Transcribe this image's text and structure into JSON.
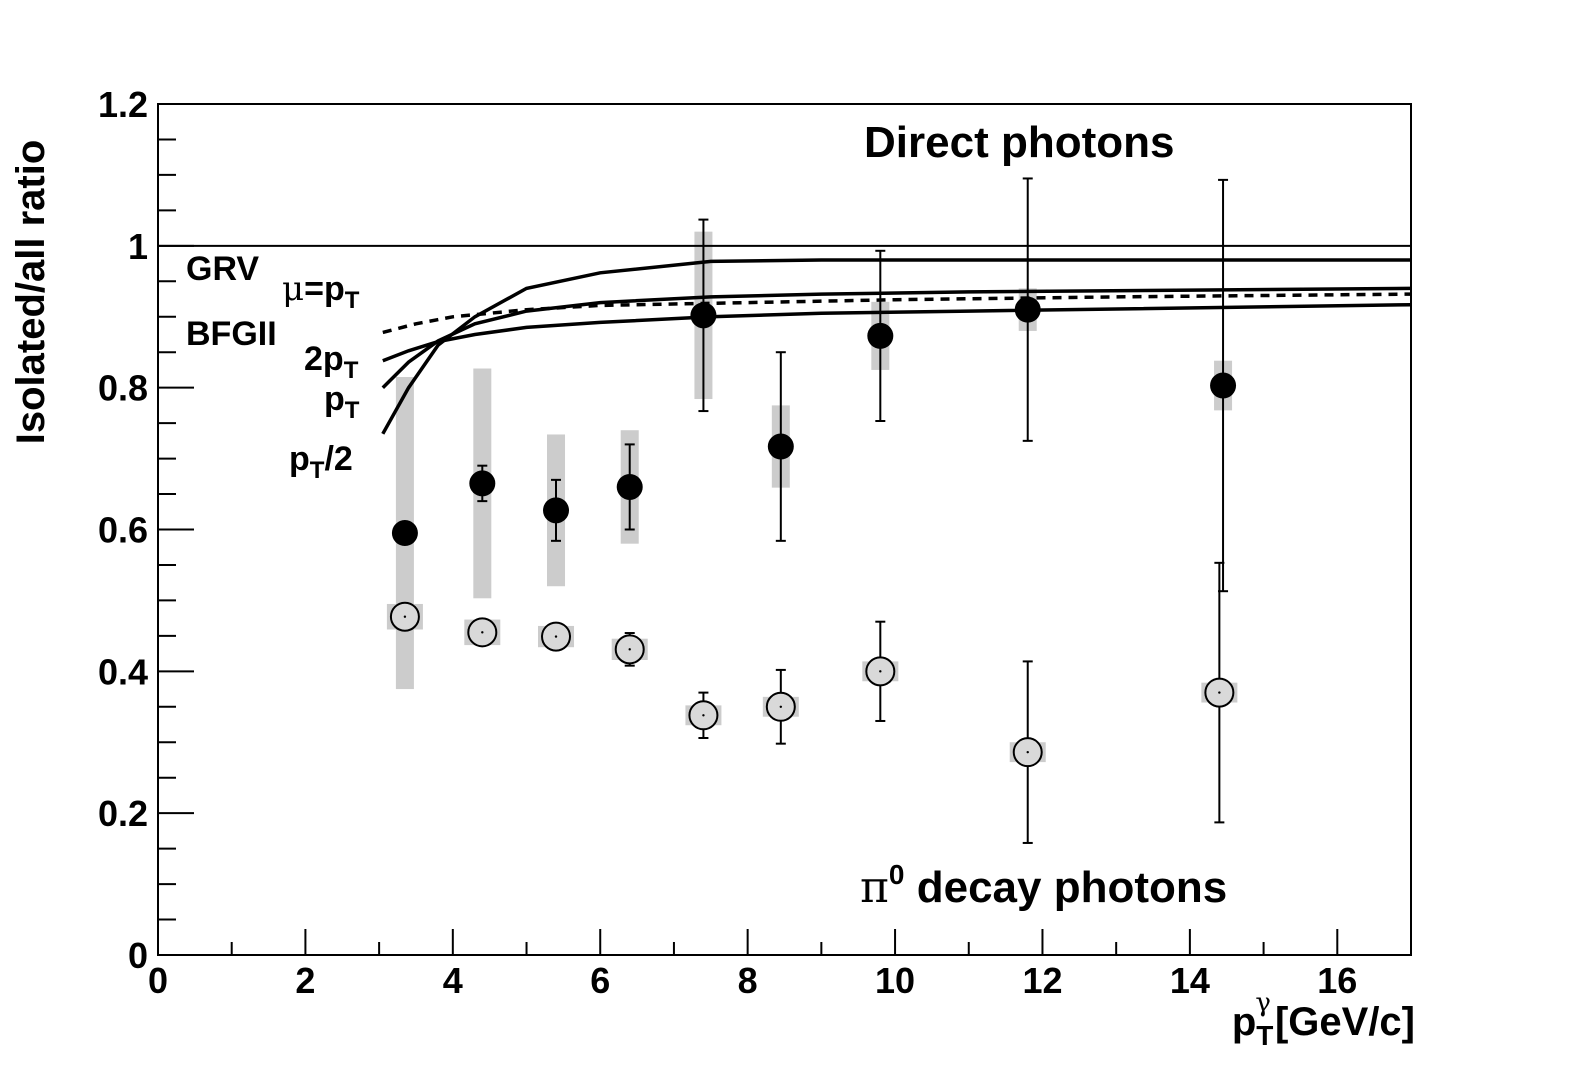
{
  "chart_data": {
    "type": "scatter",
    "title": "",
    "ylabel": "Isolated/all ratio",
    "xlabel": {
      "main": "p",
      "sub": "T",
      "sup": "γ",
      "unit": "[GeV/c]"
    },
    "xlim": [
      0,
      17
    ],
    "ylim": [
      0,
      1.2
    ],
    "x_ticks": [
      "0",
      "2",
      "4",
      "6",
      "8",
      "10",
      "12",
      "14",
      "16"
    ],
    "y_ticks": [
      "0",
      "0.2",
      "0.4",
      "0.6",
      "0.8",
      "1",
      "1.2"
    ],
    "reference_line": 1.0,
    "annotations": {
      "direct": "Direct photons",
      "pi0_greek": "π",
      "pi0_sup": "0",
      "pi0_rest": " decay photons",
      "grv": "GRV",
      "bfg": "BFGII",
      "mu_greek": "μ",
      "mu_eq": "=p",
      "mu_sub": "T",
      "twopt": "2p",
      "twopt_sub": "T",
      "pt": "p",
      "pt_sub": "T",
      "pthalf": "p",
      "pthalf_sub": "T",
      "pthalf_rest": "/2"
    },
    "series": [
      {
        "marker": "filled-circle",
        "x": [
          3.35,
          4.4,
          5.4,
          6.4,
          7.4,
          8.45,
          9.8,
          11.8,
          14.45
        ],
        "y": [
          0.595,
          0.665,
          0.627,
          0.66,
          0.902,
          0.717,
          0.873,
          0.91,
          0.803
        ],
        "stat_err": [
          0,
          0.025,
          0.043,
          0.06,
          0.135,
          0.133,
          0.12,
          0.185,
          0.29
        ],
        "sys_err": [
          0.22,
          0.162,
          0.107,
          0.08,
          0.118,
          0.058,
          0.048,
          0.03,
          0.035
        ]
      },
      {
        "marker": "open-circle",
        "x": [
          3.35,
          4.4,
          5.4,
          6.4,
          7.4,
          8.45,
          9.8,
          11.8,
          14.4
        ],
        "y": [
          0.477,
          0.455,
          0.449,
          0.431,
          0.338,
          0.35,
          0.4,
          0.286,
          0.37
        ],
        "stat_err": [
          0,
          0,
          0,
          0.023,
          0.032,
          0.052,
          0.07,
          0.128,
          0.183
        ],
        "sys_err": [
          0.018,
          0.018,
          0.015,
          0.015,
          0.014,
          0.014,
          0.014,
          0.014,
          0.014
        ]
      }
    ],
    "curves": [
      {
        "label": "pT/2",
        "style": "solid",
        "points": [
          [
            3.05,
            0.735
          ],
          [
            3.4,
            0.8
          ],
          [
            3.8,
            0.86
          ],
          [
            4.3,
            0.9
          ],
          [
            5,
            0.94
          ],
          [
            6,
            0.962
          ],
          [
            7.5,
            0.978
          ],
          [
            9,
            0.98
          ],
          [
            11,
            0.98
          ],
          [
            17,
            0.98
          ]
        ]
      },
      {
        "label": "pT",
        "style": "solid",
        "points": [
          [
            3.05,
            0.8
          ],
          [
            3.4,
            0.836
          ],
          [
            3.8,
            0.866
          ],
          [
            4.3,
            0.89
          ],
          [
            5,
            0.908
          ],
          [
            6,
            0.92
          ],
          [
            7.5,
            0.928
          ],
          [
            9,
            0.932
          ],
          [
            11,
            0.935
          ],
          [
            17,
            0.94
          ]
        ]
      },
      {
        "label": "2pT",
        "style": "solid",
        "points": [
          [
            3.05,
            0.838
          ],
          [
            3.4,
            0.852
          ],
          [
            3.8,
            0.865
          ],
          [
            4.3,
            0.875
          ],
          [
            5,
            0.885
          ],
          [
            6,
            0.892
          ],
          [
            7.5,
            0.9
          ],
          [
            9,
            0.905
          ],
          [
            11,
            0.908
          ],
          [
            17,
            0.917
          ]
        ]
      },
      {
        "label": "BFGII",
        "style": "dashed",
        "points": [
          [
            3.05,
            0.878
          ],
          [
            3.5,
            0.89
          ],
          [
            4,
            0.9
          ],
          [
            5,
            0.91
          ],
          [
            6,
            0.916
          ],
          [
            8,
            0.92
          ],
          [
            10,
            0.924
          ],
          [
            13,
            0.928
          ],
          [
            17,
            0.932
          ]
        ]
      }
    ]
  }
}
